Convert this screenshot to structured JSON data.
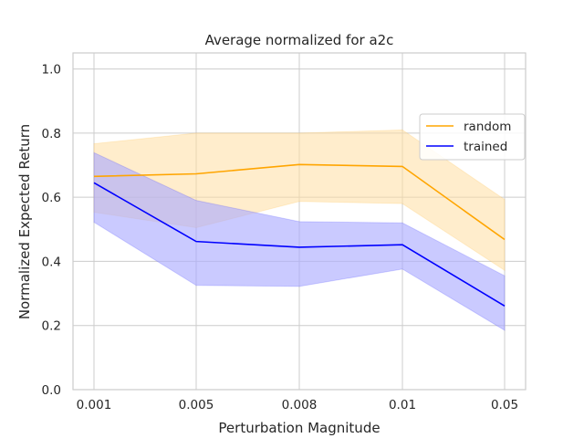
{
  "chart_data": {
    "type": "line",
    "title": "Average normalized for a2c",
    "xlabel": "Perturbation Magnitude",
    "ylabel": "Normalized Expected Return",
    "categories": [
      "0.001",
      "0.005",
      "0.008",
      "0.01",
      "0.05"
    ],
    "ylim": [
      0.0,
      1.05
    ],
    "yticks": [
      "0.0",
      "0.2",
      "0.4",
      "0.6",
      "0.8",
      "1.0"
    ],
    "grid": true,
    "legend_position": "upper right",
    "series": [
      {
        "name": "random",
        "color": "#ffa500",
        "band_color": "#ffdfa3",
        "values": [
          0.665,
          0.673,
          0.702,
          0.696,
          0.468
        ],
        "lower": [
          0.553,
          0.505,
          0.587,
          0.58,
          0.372
        ],
        "upper": [
          0.767,
          0.8,
          0.8,
          0.81,
          0.593
        ]
      },
      {
        "name": "trained",
        "color": "#0000ff",
        "band_color": "#aaaaff",
        "values": [
          0.645,
          0.462,
          0.444,
          0.452,
          0.261
        ],
        "lower": [
          0.522,
          0.325,
          0.322,
          0.376,
          0.185
        ],
        "upper": [
          0.739,
          0.59,
          0.524,
          0.52,
          0.355
        ]
      }
    ]
  }
}
